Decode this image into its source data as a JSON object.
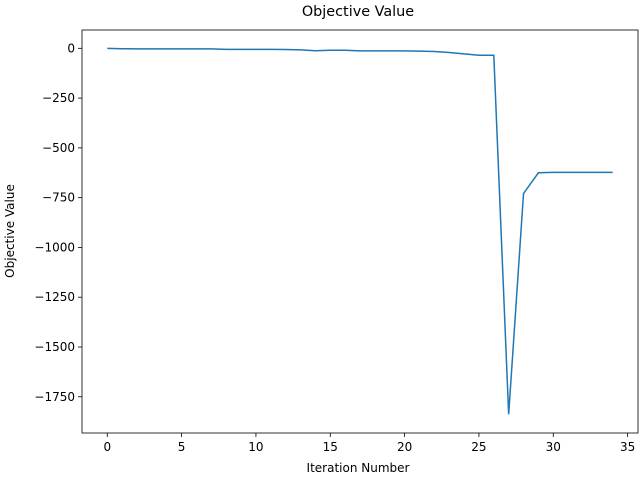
{
  "chart_data": {
    "type": "line",
    "title": "Objective Value",
    "x_label": "Iteration Number",
    "y_label": "Objective Value",
    "x": [
      0,
      1,
      2,
      3,
      4,
      5,
      6,
      7,
      8,
      9,
      10,
      11,
      12,
      13,
      14,
      15,
      16,
      17,
      18,
      19,
      20,
      21,
      22,
      23,
      24,
      25,
      26,
      27,
      28,
      29,
      30,
      31,
      32,
      33,
      34
    ],
    "series": [
      {
        "name": "Objective Value",
        "color": "#1f77b4",
        "values": [
          0,
          -2,
          -3,
          -3,
          -3,
          -3,
          -3,
          -3,
          -5,
          -5,
          -5,
          -5,
          -6,
          -8,
          -12,
          -10,
          -10,
          -13,
          -13,
          -13,
          -13,
          -14,
          -16,
          -21,
          -28,
          -35,
          -35,
          -1838,
          -729,
          -625,
          -623,
          -623,
          -623,
          -623,
          -623
        ]
      }
    ],
    "xlim": [
      -1.7,
      35.7
    ],
    "ylim": [
      -1932,
      92
    ],
    "xticks": [
      0,
      5,
      10,
      15,
      20,
      25,
      30,
      35
    ],
    "yticks": [
      {
        "value": 0,
        "label": "0"
      },
      {
        "value": -250,
        "label": "−250"
      },
      {
        "value": -500,
        "label": "−500"
      },
      {
        "value": -750,
        "label": "−750"
      },
      {
        "value": -1000,
        "label": "−1000"
      },
      {
        "value": -1250,
        "label": "−1250"
      },
      {
        "value": -1500,
        "label": "−1500"
      },
      {
        "value": -1750,
        "label": "−1750"
      }
    ]
  }
}
